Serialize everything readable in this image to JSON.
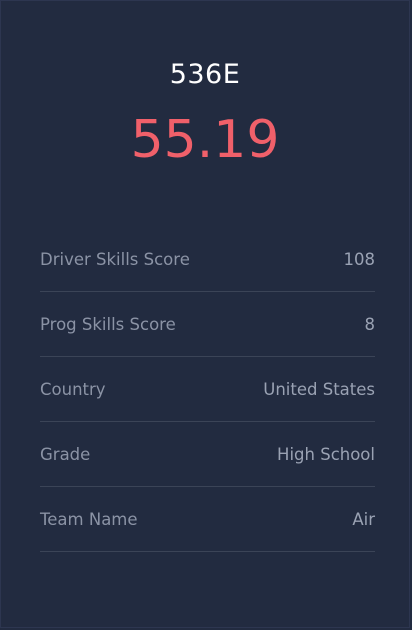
{
  "team_number": "536E",
  "score": "55.19",
  "stats": [
    {
      "label": "Driver Skills Score",
      "value": "108"
    },
    {
      "label": "Prog Skills Score",
      "value": "8"
    },
    {
      "label": "Country",
      "value": "United States"
    },
    {
      "label": "Grade",
      "value": "High School"
    },
    {
      "label": "Team Name",
      "value": "Air"
    }
  ],
  "colors": {
    "background": "#222b40",
    "score": "#f0606a",
    "title": "#ffffff",
    "label": "#8b93a5",
    "divider": "#3b4457"
  }
}
